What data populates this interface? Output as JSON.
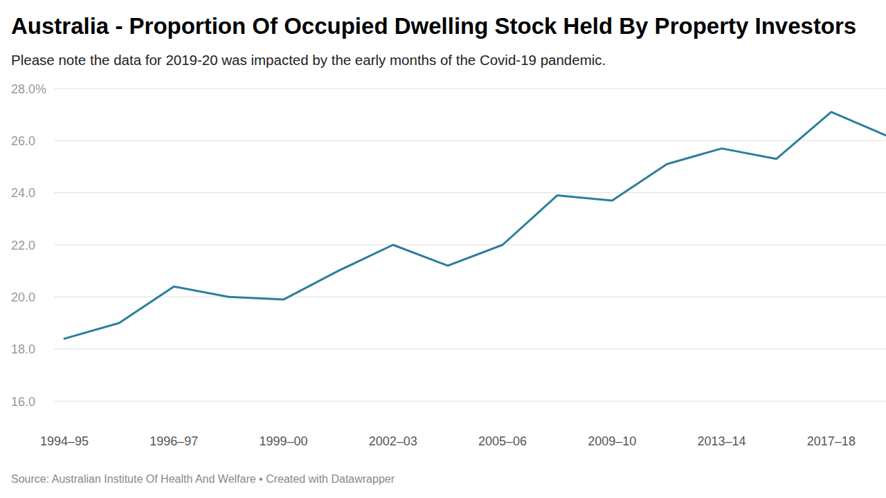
{
  "chart_data": {
    "type": "line",
    "title": "Australia - Proportion Of Occupied Dwelling Stock Held By Property Investors",
    "subtitle": "Please note the data for 2019-20 was impacted by the early months of the Covid-19 pandemic.",
    "source": "Source: Australian Institute Of Health And Welfare • Created with Datawrapper",
    "categories": [
      "1994–95",
      null,
      "1996–97",
      null,
      "1999–00",
      null,
      "2002–03",
      null,
      "2005–06",
      null,
      "2009–10",
      null,
      "2013–14",
      null,
      "2017–18",
      null
    ],
    "values": [
      18.4,
      19.0,
      20.4,
      20.0,
      19.9,
      21.0,
      22.0,
      21.2,
      22.0,
      23.9,
      23.7,
      25.1,
      25.7,
      25.3,
      27.1,
      26.2
    ],
    "color": "#2a7f9b",
    "ylim": [
      16,
      28
    ],
    "yticks": [
      {
        "value": 16,
        "label": "16.0"
      },
      {
        "value": 18,
        "label": "18.0"
      },
      {
        "value": 20,
        "label": "20.0"
      },
      {
        "value": 22,
        "label": "22.0"
      },
      {
        "value": 24,
        "label": "24.0"
      },
      {
        "value": 26,
        "label": "26.0"
      },
      {
        "value": 28,
        "label": "28.0%"
      }
    ],
    "grid": true
  }
}
